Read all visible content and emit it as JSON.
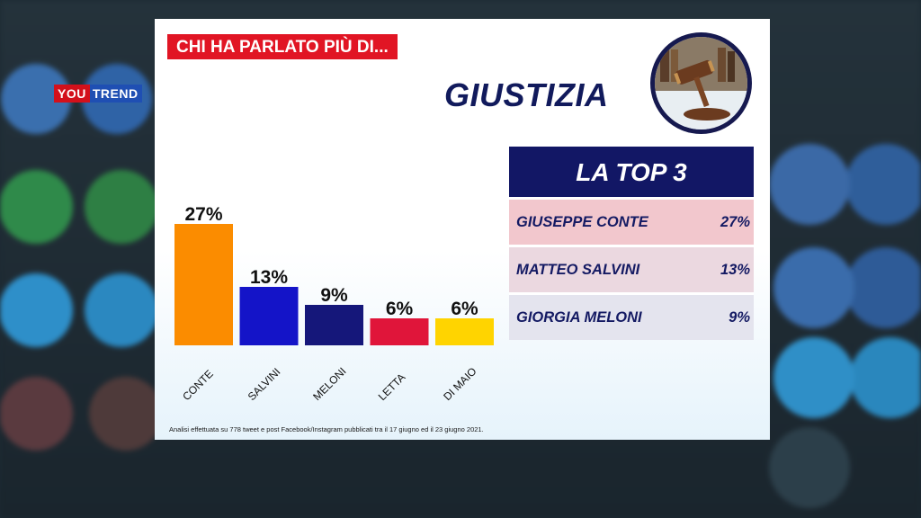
{
  "logo": {
    "part1": "YOU",
    "part2": "TREND"
  },
  "banner": "CHI HA PARLATO PIÙ DI...",
  "topic": "GIUSTIZIA",
  "top3": {
    "title": "LA TOP 3",
    "rows": [
      {
        "name": "GIUSEPPE CONTE",
        "value": "27%"
      },
      {
        "name": "MATTEO SALVINI",
        "value": "13%"
      },
      {
        "name": "GIORGIA MELONI",
        "value": "9%"
      }
    ]
  },
  "footnote": "Analisi effettuata su 778 tweet e post Facebook/Instagram pubblicati tra il 17 giugno ed il 23 giugno 2021.",
  "chart_data": {
    "type": "bar",
    "categories": [
      "CONTE",
      "SALVINI",
      "MELONI",
      "LETTA",
      "DI MAIO"
    ],
    "values": [
      27,
      13,
      9,
      6,
      6
    ],
    "labels": [
      "27%",
      "13%",
      "9%",
      "6%",
      "6%"
    ],
    "colors": [
      "#fb8c00",
      "#1414c8",
      "#15177a",
      "#e0153a",
      "#ffd400"
    ],
    "unit": "%"
  }
}
